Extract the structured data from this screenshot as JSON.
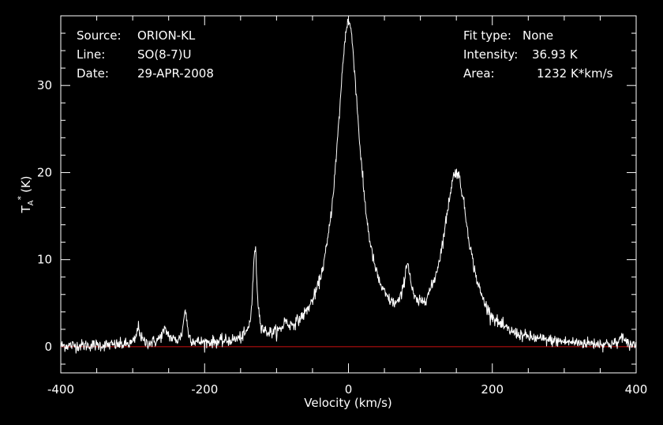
{
  "info_left": [
    {
      "key": "Source:",
      "value": "ORION-KL"
    },
    {
      "key": "Line:",
      "value": "SO(8-7)U"
    },
    {
      "key": "Date:",
      "value": "29-APR-2008"
    }
  ],
  "info_right": [
    {
      "key": "Fit type:",
      "value": "None"
    },
    {
      "key": "Intensity:",
      "value": "36.93 K"
    },
    {
      "key": "Area:",
      "value": "1232 K*km/s"
    }
  ],
  "colors": {
    "background": "#000000",
    "trace": "#ffffff",
    "baseline": "#cc1111",
    "axes": "#ffffff"
  },
  "chart_data": {
    "type": "line",
    "title": "",
    "xlabel": "Velocity (km/s)",
    "ylabel_main": "T",
    "ylabel_sub": "A",
    "ylabel_sup": "*",
    "ylabel_unit": "(K)",
    "xlim": [
      -400,
      400
    ],
    "ylim": [
      -3,
      38
    ],
    "x_ticks": [
      -400,
      -200,
      0,
      200,
      400
    ],
    "x_tick_labels": [
      "-400",
      "-200",
      "0",
      "200",
      "400"
    ],
    "y_ticks": [
      0,
      10,
      20,
      30
    ],
    "y_tick_labels": [
      "0",
      "10",
      "20",
      "30"
    ],
    "x_minor_step": 50,
    "y_minor_step": 2,
    "baseline_y": 0,
    "grid": false,
    "noise_rms": 0.35,
    "series": [
      {
        "peaks": [
          {
            "center": 0,
            "amplitude": 36.9,
            "width": 20
          },
          {
            "center": 150,
            "amplitude": 19.4,
            "width": 22
          },
          {
            "center": 82,
            "amplitude": 5.7,
            "width": 6
          },
          {
            "center": -130,
            "amplitude": 10.4,
            "width": 3.5
          },
          {
            "center": -227,
            "amplitude": 3.8,
            "width": 3
          },
          {
            "center": -292,
            "amplitude": 2.0,
            "width": 3
          },
          {
            "center": -255,
            "amplitude": 1.5,
            "width": 7
          },
          {
            "center": -88,
            "amplitude": 1.0,
            "width": 3
          },
          {
            "center": 380,
            "amplitude": 1.3,
            "width": 2
          }
        ]
      }
    ]
  }
}
